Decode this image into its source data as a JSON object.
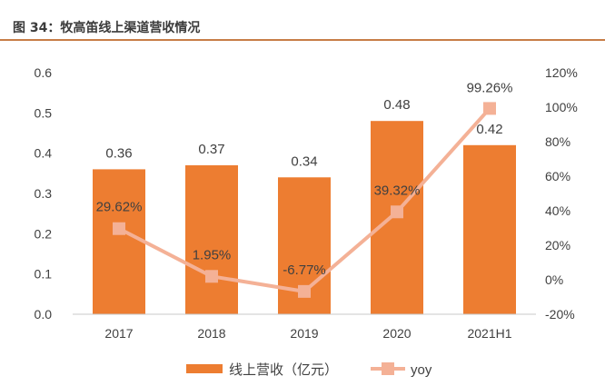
{
  "figure": {
    "title": "图 34：牧高笛线上渠道营收情况"
  },
  "chart_data": {
    "type": "bar",
    "categories": [
      "2017",
      "2018",
      "2019",
      "2020",
      "2021H1"
    ],
    "series": [
      {
        "name": "线上营收（亿元）",
        "type": "bar",
        "axis": "left",
        "values": [
          0.36,
          0.37,
          0.34,
          0.48,
          0.42
        ],
        "labels": [
          "0.36",
          "0.37",
          "0.34",
          "0.48",
          "0.42"
        ],
        "color": "#ed7d31"
      },
      {
        "name": "yoy",
        "type": "line",
        "axis": "right",
        "values": [
          29.62,
          1.95,
          -6.77,
          39.32,
          99.26
        ],
        "labels": [
          "29.62%",
          "1.95%",
          "-6.77%",
          "39.32%",
          "99.26%"
        ],
        "color": "#f4b196"
      }
    ],
    "y_left": {
      "lim": [
        0,
        0.6
      ],
      "ticks": [
        "0.0",
        "0.1",
        "0.2",
        "0.3",
        "0.4",
        "0.5",
        "0.6"
      ]
    },
    "y_right": {
      "lim": [
        -20,
        120
      ],
      "ticks": [
        "-20%",
        "0%",
        "20%",
        "40%",
        "60%",
        "80%",
        "100%",
        "120%"
      ]
    },
    "grid": false,
    "legend": "bottom"
  }
}
